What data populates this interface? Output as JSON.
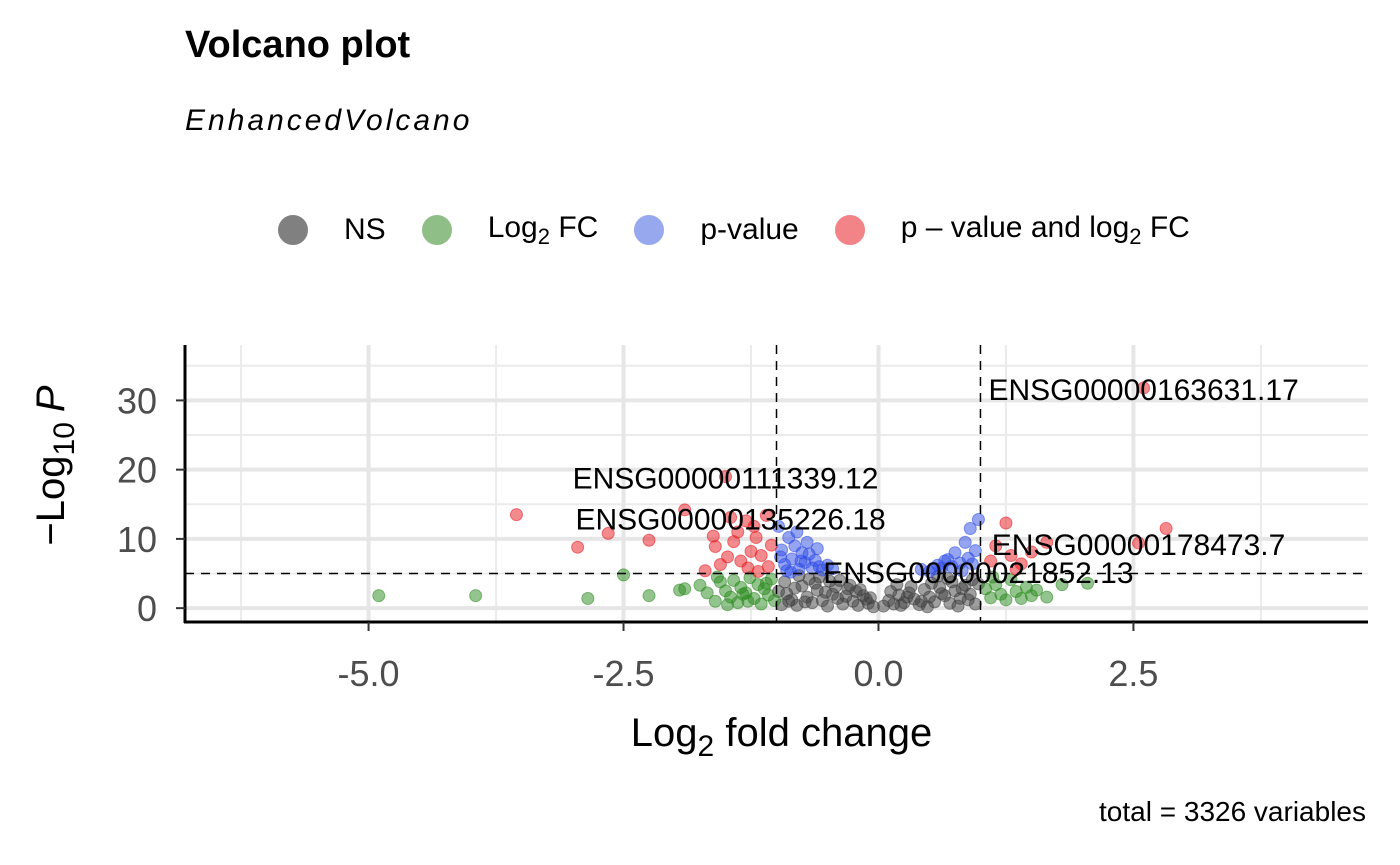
{
  "chart_data": {
    "type": "scatter",
    "title": "Volcano plot",
    "subtitle": "EnhancedVolcano",
    "caption": "total = 3326 variables",
    "xlabel": "Log2 fold change",
    "ylabel": "-Log10 P",
    "xlim": [
      -6.8,
      4.8
    ],
    "ylim": [
      -2,
      38
    ],
    "x_ticks": [
      -5.0,
      -2.5,
      0.0,
      2.5
    ],
    "x_tick_labels": [
      "-5.0",
      "-2.5",
      "0.0",
      "2.5"
    ],
    "y_ticks": [
      0,
      10,
      20,
      30
    ],
    "y_tick_labels": [
      "0",
      "10",
      "20",
      "30"
    ],
    "grid": true,
    "legend_position": "top",
    "cutoffs": {
      "fold_change": [
        -1,
        1
      ],
      "p_value_neglog10": 5
    },
    "series": [
      {
        "name": "NS",
        "color": "#3f3f3f",
        "legend_color": "#808080",
        "points": [
          [
            -0.95,
            0.5
          ],
          [
            -0.9,
            2.1
          ],
          [
            -0.85,
            1.2
          ],
          [
            -0.8,
            0.4
          ],
          [
            -0.75,
            3.2
          ],
          [
            -0.7,
            1.6
          ],
          [
            -0.65,
            0.8
          ],
          [
            -0.6,
            2.6
          ],
          [
            -0.55,
            1.1
          ],
          [
            -0.5,
            0.3
          ],
          [
            -0.45,
            2.0
          ],
          [
            -0.4,
            1.4
          ],
          [
            -0.35,
            0.6
          ],
          [
            -0.3,
            2.8
          ],
          [
            -0.25,
            1.0
          ],
          [
            -0.2,
            0.4
          ],
          [
            -0.15,
            1.8
          ],
          [
            -0.1,
            0.7
          ],
          [
            -0.05,
            0.2
          ],
          [
            -0.92,
            3.8
          ],
          [
            -0.82,
            2.9
          ],
          [
            -0.72,
            0.9
          ],
          [
            -0.62,
            3.6
          ],
          [
            -0.52,
            2.3
          ],
          [
            -0.42,
            3.1
          ],
          [
            -0.32,
            1.7
          ],
          [
            -0.22,
            2.4
          ],
          [
            -0.12,
            1.3
          ],
          [
            -0.68,
            4.2
          ],
          [
            -0.58,
            4.5
          ],
          [
            -0.48,
            3.9
          ],
          [
            -0.78,
            4.7
          ],
          [
            -0.38,
            4.0
          ],
          [
            -0.28,
            3.3
          ],
          [
            -0.18,
            2.7
          ],
          [
            -0.08,
            1.5
          ],
          [
            -0.88,
            1.0
          ],
          [
            -0.98,
            2.4
          ],
          [
            0.05,
            0.3
          ],
          [
            0.1,
            1.1
          ],
          [
            0.15,
            0.6
          ],
          [
            0.2,
            1.9
          ],
          [
            0.25,
            0.8
          ],
          [
            0.3,
            2.2
          ],
          [
            0.35,
            1.3
          ],
          [
            0.4,
            0.5
          ],
          [
            0.45,
            2.7
          ],
          [
            0.5,
            1.6
          ],
          [
            0.55,
            0.9
          ],
          [
            0.6,
            3.0
          ],
          [
            0.65,
            1.8
          ],
          [
            0.7,
            0.7
          ],
          [
            0.75,
            2.5
          ],
          [
            0.8,
            1.4
          ],
          [
            0.85,
            3.3
          ],
          [
            0.9,
            2.0
          ],
          [
            0.95,
            0.6
          ],
          [
            0.12,
            2.4
          ],
          [
            0.22,
            0.4
          ],
          [
            0.32,
            3.1
          ],
          [
            0.42,
            1.0
          ],
          [
            0.52,
            3.6
          ],
          [
            0.62,
            2.1
          ],
          [
            0.72,
            3.8
          ],
          [
            0.82,
            2.8
          ],
          [
            0.92,
            4.1
          ],
          [
            0.28,
            1.6
          ],
          [
            0.48,
            0.2
          ],
          [
            0.68,
            4.3
          ],
          [
            0.88,
            1.2
          ],
          [
            0.18,
            3.4
          ],
          [
            0.58,
            4.6
          ],
          [
            0.78,
            0.3
          ],
          [
            0.98,
            3.5
          ]
        ]
      },
      {
        "name": "Log2 FC",
        "color": "#2a8a1e",
        "legend_color": "#8fbf87",
        "points": [
          [
            -4.9,
            1.8
          ],
          [
            -3.95,
            1.8
          ],
          [
            -2.85,
            1.4
          ],
          [
            -2.5,
            4.8
          ],
          [
            -2.25,
            1.8
          ],
          [
            -1.95,
            2.6
          ],
          [
            -1.9,
            2.8
          ],
          [
            -1.75,
            3.3
          ],
          [
            -1.68,
            2.2
          ],
          [
            -1.6,
            1.0
          ],
          [
            -1.55,
            3.8
          ],
          [
            -1.5,
            2.5
          ],
          [
            -1.45,
            1.6
          ],
          [
            -1.42,
            4.0
          ],
          [
            -1.38,
            0.8
          ],
          [
            -1.35,
            3.0
          ],
          [
            -1.3,
            2.2
          ],
          [
            -1.26,
            4.4
          ],
          [
            -1.22,
            1.4
          ],
          [
            -1.18,
            3.4
          ],
          [
            -1.15,
            0.6
          ],
          [
            -1.12,
            2.8
          ],
          [
            -1.08,
            1.9
          ],
          [
            -1.05,
            4.2
          ],
          [
            -1.02,
            1.1
          ],
          [
            -1.48,
            0.5
          ],
          [
            -1.28,
            1.0
          ],
          [
            -1.1,
            3.6
          ],
          [
            -1.58,
            4.5
          ],
          [
            -1.33,
            2.0
          ],
          [
            1.05,
            2.8
          ],
          [
            1.1,
            1.5
          ],
          [
            1.15,
            3.4
          ],
          [
            1.2,
            2.0
          ],
          [
            1.25,
            1.2
          ],
          [
            1.3,
            4.1
          ],
          [
            1.35,
            2.4
          ],
          [
            1.4,
            1.4
          ],
          [
            1.45,
            3.0
          ],
          [
            1.5,
            1.8
          ],
          [
            1.55,
            2.6
          ],
          [
            1.65,
            1.6
          ],
          [
            1.8,
            3.4
          ],
          [
            2.05,
            3.6
          ],
          [
            1.12,
            4.5
          ]
        ]
      },
      {
        "name": "p-value",
        "color": "#2e4ce6",
        "legend_color": "#97a8ee",
        "points": [
          [
            -0.98,
            11.8
          ],
          [
            -0.95,
            8.4
          ],
          [
            -0.92,
            6.3
          ],
          [
            -0.88,
            10.2
          ],
          [
            -0.85,
            7.1
          ],
          [
            -0.82,
            9.0
          ],
          [
            -0.78,
            5.6
          ],
          [
            -0.75,
            8.0
          ],
          [
            -0.72,
            6.6
          ],
          [
            -0.68,
            7.8
          ],
          [
            -0.65,
            5.8
          ],
          [
            -0.62,
            6.9
          ],
          [
            -0.58,
            6.0
          ],
          [
            -0.55,
            5.5
          ],
          [
            -0.5,
            6.2
          ],
          [
            -0.45,
            5.7
          ],
          [
            -0.9,
            5.4
          ],
          [
            -0.8,
            11.0
          ],
          [
            -0.7,
            9.5
          ],
          [
            -0.6,
            8.6
          ],
          [
            -0.96,
            7.4
          ],
          [
            -0.86,
            5.2
          ],
          [
            -0.76,
            6.8
          ],
          [
            0.42,
            5.6
          ],
          [
            0.5,
            5.3
          ],
          [
            0.58,
            6.2
          ],
          [
            0.62,
            5.8
          ],
          [
            0.68,
            7.0
          ],
          [
            0.72,
            6.0
          ],
          [
            0.75,
            8.0
          ],
          [
            0.8,
            6.5
          ],
          [
            0.85,
            9.5
          ],
          [
            0.88,
            7.2
          ],
          [
            0.9,
            11.5
          ],
          [
            0.95,
            8.3
          ],
          [
            0.98,
            12.8
          ],
          [
            0.92,
            6.4
          ],
          [
            0.82,
            5.4
          ],
          [
            0.65,
            6.8
          ],
          [
            0.55,
            5.7
          ]
        ]
      },
      {
        "name": "p – value and log2 FC",
        "color": "#e8181e",
        "legend_color": "#f28387",
        "points": [
          [
            -3.55,
            13.5
          ],
          [
            -2.95,
            8.8
          ],
          [
            -2.65,
            10.8
          ],
          [
            -2.25,
            9.8
          ],
          [
            -1.9,
            14.2
          ],
          [
            -1.5,
            19.0
          ],
          [
            -1.45,
            13.1
          ],
          [
            -1.38,
            11.0
          ],
          [
            -1.42,
            9.6
          ],
          [
            -1.3,
            12.6
          ],
          [
            -1.25,
            8.2
          ],
          [
            -1.6,
            8.9
          ],
          [
            -1.55,
            6.3
          ],
          [
            -1.48,
            7.4
          ],
          [
            -1.35,
            6.8
          ],
          [
            -1.2,
            10.2
          ],
          [
            -1.15,
            7.6
          ],
          [
            -1.1,
            13.4
          ],
          [
            -1.05,
            9.1
          ],
          [
            -1.7,
            5.4
          ],
          [
            -1.28,
            5.8
          ],
          [
            -1.18,
            5.3
          ],
          [
            -1.62,
            10.4
          ],
          [
            -1.08,
            6.0
          ],
          [
            -1.22,
            11.8
          ],
          [
            1.25,
            12.3
          ],
          [
            1.3,
            7.6
          ],
          [
            1.4,
            6.4
          ],
          [
            1.5,
            8.1
          ],
          [
            1.65,
            9.5
          ],
          [
            2.55,
            9.4
          ],
          [
            2.6,
            31.8
          ],
          [
            2.82,
            11.5
          ],
          [
            1.15,
            9.0
          ],
          [
            1.35,
            5.6
          ],
          [
            1.1,
            6.8
          ]
        ]
      }
    ],
    "labels": [
      {
        "text": "ENSG00000163631.17",
        "x": 2.6,
        "y": 31.8
      },
      {
        "text": "ENSG00000111339.12",
        "x": -1.5,
        "y": 19.0
      },
      {
        "text": "ENSG00000135226.18",
        "x": -1.45,
        "y": 13.1
      },
      {
        "text": "ENSG00000178473.7",
        "x": 2.55,
        "y": 9.4
      },
      {
        "text": "ENSG00000021852.13",
        "x": 0.98,
        "y": 5.4
      }
    ]
  },
  "legend": {
    "items": [
      {
        "base": "NS",
        "sub": "",
        "suffix": "",
        "color": "#808080"
      },
      {
        "base": "Log",
        "sub": "2",
        "suffix": " FC",
        "color": "#8fbf87"
      },
      {
        "base": "p-value",
        "sub": "",
        "suffix": "",
        "color": "#97a8ee"
      },
      {
        "base": "p – value and log",
        "sub": "2",
        "suffix": " FC",
        "color": "#f28387"
      }
    ]
  }
}
